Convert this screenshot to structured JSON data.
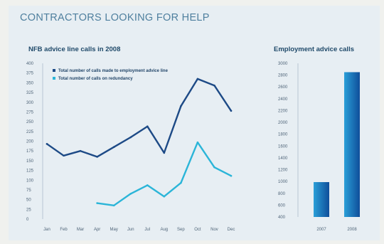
{
  "headline": "CONTRACTORS LOOKING FOR HELP",
  "colors": {
    "total": "#1d4a86",
    "redundancy": "#2bb5d8",
    "bar_light": "#2a9fd8",
    "bar_dark": "#0f4e9a"
  },
  "chart_data": [
    {
      "type": "line",
      "title": "NFB advice line calls in 2008",
      "xlabel": "",
      "ylabel": "",
      "categories": [
        "Jan",
        "Feb",
        "Mar",
        "Apr",
        "May",
        "Jun",
        "Jul",
        "Aug",
        "Sep",
        "Oct",
        "Nov",
        "Dec"
      ],
      "y_ticks": [
        "400",
        "375",
        "350",
        "325",
        "300",
        "275",
        "250",
        "225",
        "200",
        "175",
        "150",
        "125",
        "100",
        "75",
        "50",
        "25",
        "0"
      ],
      "ylim": [
        0,
        400
      ],
      "grid": false,
      "legend": "top-left",
      "series": [
        {
          "name": "Total number of calls made to employment advice line",
          "color": "#1d4a86",
          "values": [
            193,
            163,
            175,
            160,
            185,
            210,
            238,
            170,
            290,
            360,
            343,
            278
          ]
        },
        {
          "name": "Total number of calls on redundancy",
          "color": "#2bb5d8",
          "values": [
            null,
            null,
            null,
            41,
            35,
            65,
            87,
            58,
            93,
            197,
            133,
            111
          ]
        }
      ]
    },
    {
      "type": "bar",
      "title": "Employment advice calls",
      "xlabel": "",
      "ylabel": "",
      "categories": [
        "2007",
        "2008"
      ],
      "values": [
        990,
        2850
      ],
      "y_ticks": [
        "3000",
        "2800",
        "2600",
        "2400",
        "2200",
        "2000",
        "1800",
        "1600",
        "1400",
        "1200",
        "1000",
        "800",
        "600",
        "400"
      ],
      "ylim": [
        400,
        3000
      ],
      "grid": false,
      "legend": "none"
    }
  ]
}
